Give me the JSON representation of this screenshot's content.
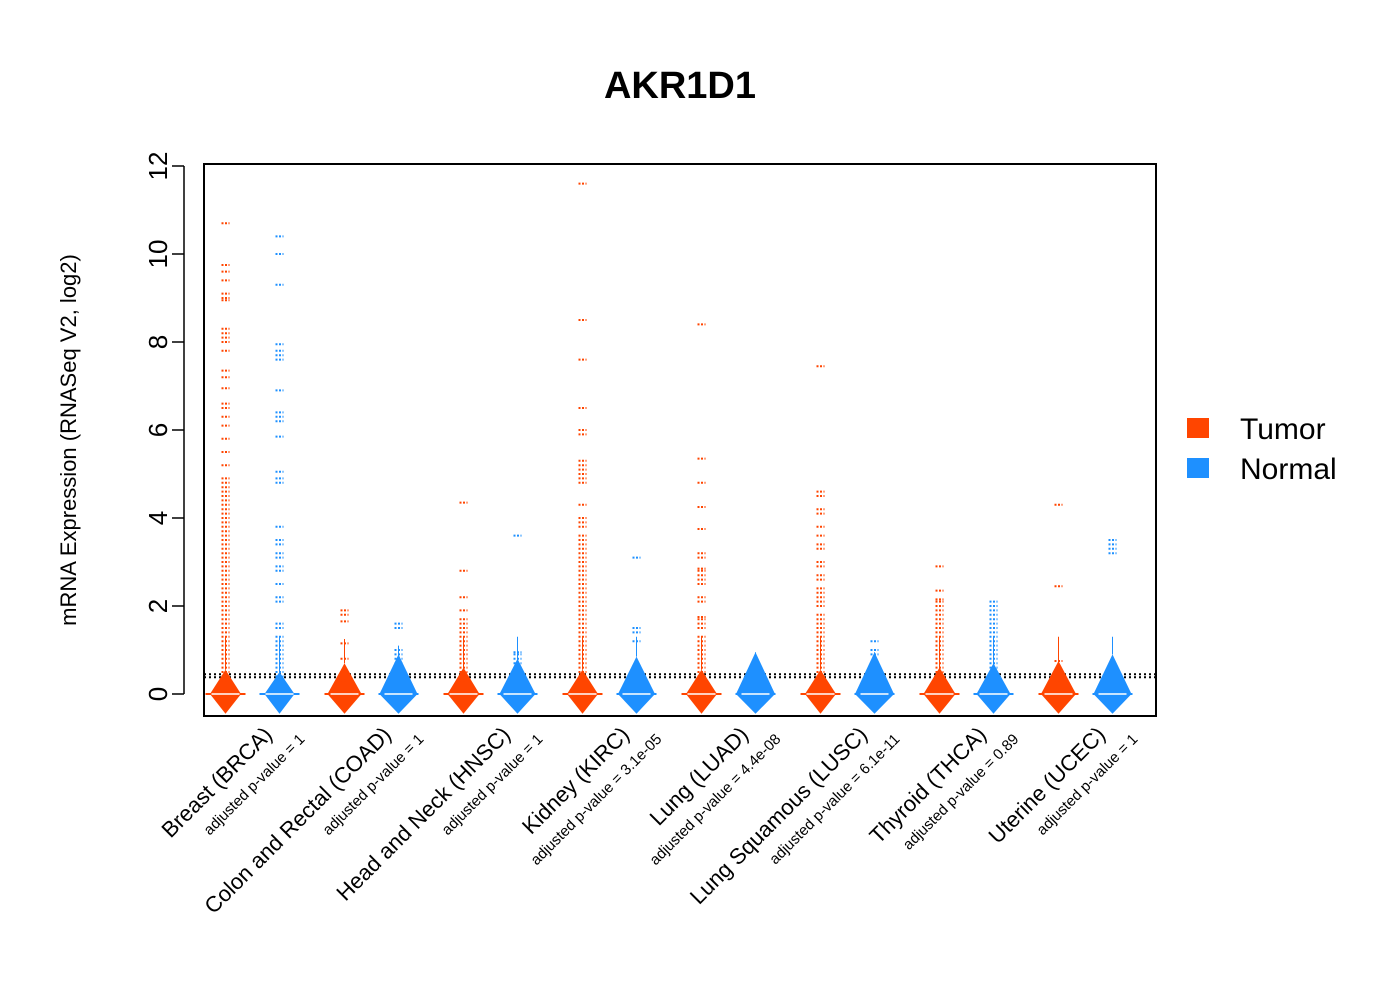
{
  "chart_data": {
    "type": "beanplot",
    "title": "AKR1D1",
    "xlabel": "",
    "ylabel": "mRNA Expression (RNASeq V2, log2)",
    "ylim": [
      -0.5,
      12.5
    ],
    "yticks": [
      "0",
      "2",
      "4",
      "6",
      "8",
      "10",
      "12"
    ],
    "threshold_lines": [
      0.38,
      0.45
    ],
    "legend": {
      "placement": "right",
      "entries": [
        {
          "label": "Tumor",
          "color": "#FF4500"
        },
        {
          "label": "Normal",
          "color": "#1E90FF"
        }
      ]
    },
    "categories": [
      {
        "name": "Breast (BRCA)",
        "pvalue": "adjusted p-value = 1",
        "tumor": [
          10.7,
          9.75,
          9.6,
          9.4,
          9.1,
          9.0,
          8.95,
          8.3,
          8.2,
          8.1,
          8.0,
          7.8,
          7.35,
          7.2,
          6.95,
          6.6,
          6.5,
          6.3,
          6.1,
          5.8,
          5.5,
          5.2,
          4.9,
          4.8,
          4.7,
          4.6,
          4.5,
          4.4,
          4.3,
          4.2,
          4.1,
          4.0,
          3.9,
          3.8,
          3.7,
          3.6,
          3.5,
          3.4,
          3.3,
          3.2,
          3.1,
          3.0,
          2.9,
          2.8,
          2.7,
          2.6,
          2.5,
          2.4,
          2.3,
          2.2,
          2.1,
          2.0,
          1.9,
          1.8,
          1.7,
          1.6,
          1.5,
          1.4,
          1.3,
          1.2,
          1.1,
          1.0,
          0.9,
          0.8,
          0.7,
          0.6,
          0.5,
          0.4,
          0.3
        ],
        "normal": [
          10.4,
          10.0,
          9.3,
          7.95,
          7.8,
          7.7,
          7.6,
          6.9,
          6.4,
          6.3,
          6.2,
          5.85,
          5.05,
          4.9,
          4.8,
          3.8,
          3.5,
          3.4,
          3.2,
          3.1,
          2.9,
          2.8,
          2.5,
          2.2,
          2.1,
          1.6,
          1.5,
          1.3,
          1.2,
          1.1,
          1.0,
          0.9,
          0.8,
          0.7,
          0.6,
          0.5,
          0.4,
          0.3
        ],
        "tumor_peak": 0.55,
        "normal_peak": 0.5
      },
      {
        "name": "Colon and Rectal (COAD)",
        "pvalue": "adjusted p-value = 1",
        "tumor": [
          1.9,
          1.8,
          1.65,
          1.15,
          0.8,
          0.5,
          0.3
        ],
        "normal": [
          1.6,
          1.5,
          1.0,
          0.9,
          0.8,
          0.7,
          0.6,
          0.5,
          0.3
        ],
        "tumor_peak": 0.7,
        "normal_peak": 0.9
      },
      {
        "name": "Head and Neck (HNSC)",
        "pvalue": "adjusted p-value = 1",
        "tumor": [
          4.35,
          2.8,
          2.2,
          1.9,
          1.7,
          1.6,
          1.5,
          1.4,
          1.3,
          1.2,
          1.1,
          1.0,
          0.9,
          0.8,
          0.7,
          0.6,
          0.5,
          0.4,
          0.3
        ],
        "normal": [
          3.6,
          0.95,
          0.9,
          0.8,
          0.7,
          0.6,
          0.5,
          0.4,
          0.3
        ],
        "tumor_peak": 0.6,
        "normal_peak": 0.8
      },
      {
        "name": "Kidney (KIRC)",
        "pvalue": "adjusted p-value = 3.1e-05",
        "tumor": [
          11.6,
          8.5,
          7.6,
          6.5,
          6.0,
          5.9,
          5.3,
          5.2,
          5.1,
          5.0,
          4.9,
          4.8,
          4.3,
          4.0,
          3.9,
          3.8,
          3.6,
          3.5,
          3.4,
          3.3,
          3.2,
          3.1,
          3.0,
          2.9,
          2.8,
          2.7,
          2.6,
          2.5,
          2.4,
          2.3,
          2.2,
          2.1,
          2.0,
          1.9,
          1.8,
          1.7,
          1.6,
          1.5,
          1.4,
          1.3,
          1.2,
          1.1,
          1.0,
          0.9,
          0.8,
          0.7,
          0.6,
          0.5,
          0.4,
          0.3
        ],
        "normal": [
          3.1,
          1.5,
          1.4,
          1.2,
          0.6,
          0.5,
          0.4,
          0.3
        ],
        "tumor_peak": 0.55,
        "normal_peak": 0.85
      },
      {
        "name": "Lung (LUAD)",
        "pvalue": "adjusted p-value = 4.4e-08",
        "tumor": [
          8.4,
          5.35,
          4.8,
          4.25,
          3.75,
          3.2,
          3.1,
          2.85,
          2.8,
          2.7,
          2.6,
          2.5,
          2.2,
          2.1,
          1.75,
          1.7,
          1.6,
          1.5,
          1.3,
          1.2,
          1.1,
          1.0,
          0.9,
          0.8,
          0.7,
          0.6,
          0.5,
          0.4,
          0.3
        ],
        "normal": [
          0.7,
          0.6,
          0.5,
          0.4,
          0.3
        ],
        "tumor_peak": 0.55,
        "normal_peak": 0.95
      },
      {
        "name": "Lung Squamous (LUSC)",
        "pvalue": "adjusted p-value = 6.1e-11",
        "tumor": [
          7.45,
          4.6,
          4.5,
          4.2,
          4.1,
          3.8,
          3.6,
          3.4,
          3.3,
          3.0,
          2.9,
          2.7,
          2.6,
          2.4,
          2.3,
          2.2,
          2.1,
          2.0,
          1.8,
          1.7,
          1.6,
          1.5,
          1.4,
          1.3,
          1.2,
          1.1,
          1.0,
          0.9,
          0.8,
          0.7,
          0.6,
          0.5,
          0.4,
          0.3
        ],
        "normal": [
          1.2,
          1.0,
          0.9,
          0.7,
          0.6,
          0.5,
          0.4,
          0.3
        ],
        "tumor_peak": 0.55,
        "normal_peak": 0.95
      },
      {
        "name": "Thyroid (THCA)",
        "pvalue": "adjusted p-value = 0.89",
        "tumor": [
          2.9,
          2.35,
          2.15,
          2.1,
          2.0,
          1.9,
          1.8,
          1.7,
          1.6,
          1.5,
          1.4,
          1.3,
          1.2,
          1.1,
          1.0,
          0.9,
          0.8,
          0.7,
          0.6,
          0.5,
          0.4,
          0.3
        ],
        "normal": [
          2.1,
          2.0,
          1.9,
          1.8,
          1.7,
          1.6,
          1.5,
          1.4,
          1.3,
          1.2,
          1.1,
          1.0,
          0.9,
          0.8,
          0.7,
          0.6,
          0.5,
          0.4,
          0.3
        ],
        "tumor_peak": 0.6,
        "normal_peak": 0.7
      },
      {
        "name": "Uterine (UCEC)",
        "pvalue": "adjusted p-value = 1",
        "tumor": [
          4.3,
          2.45,
          0.75,
          0.4,
          0.3
        ],
        "normal": [
          3.5,
          3.4,
          3.3,
          3.2,
          0.5,
          0.4,
          0.3
        ],
        "tumor_peak": 0.75,
        "normal_peak": 0.9
      }
    ]
  }
}
